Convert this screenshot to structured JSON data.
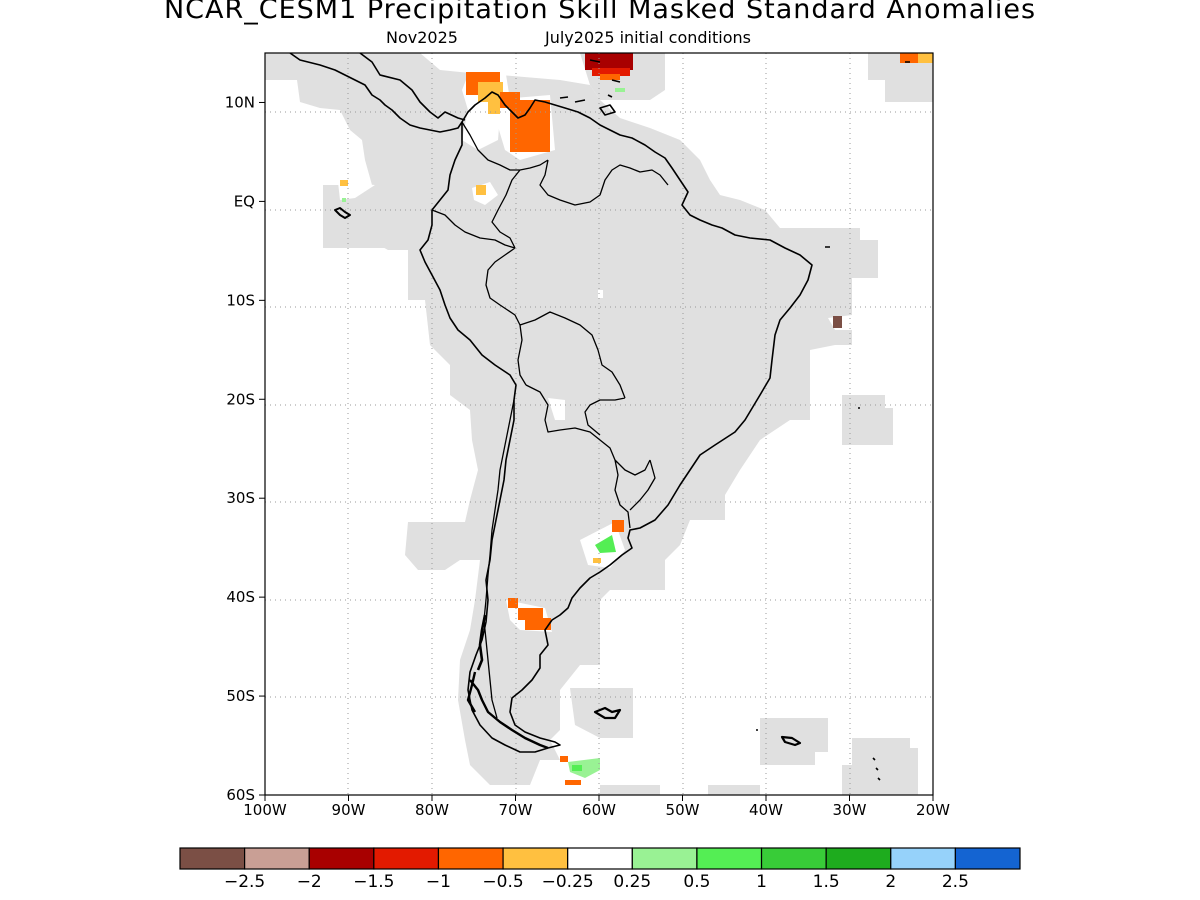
{
  "title": "NCAR_CESM1 Precipitation Skill Masked Standard Anomalies",
  "subtitle_left": "Nov2025",
  "subtitle_right": "July2025 initial conditions",
  "map": {
    "lon_range": [
      -100,
      -20
    ],
    "lat_range": [
      -60,
      15
    ],
    "grid": "dotted",
    "x_ticks": [
      "100W",
      "90W",
      "80W",
      "70W",
      "60W",
      "50W",
      "40W",
      "30W",
      "20W"
    ],
    "y_ticks": [
      "10N",
      "EQ",
      "10S",
      "20S",
      "30S",
      "40S",
      "50S",
      "60S"
    ],
    "mask_color": "#e0e0e0",
    "coastline_color": "#000000"
  },
  "colorbar": {
    "colors": [
      "#7b4f45",
      "#c99f95",
      "#a80000",
      "#e31a00",
      "#ff6600",
      "#ffc040",
      "#ffffff",
      "#99f294",
      "#54ee54",
      "#38cc38",
      "#1eac1e",
      "#96d2fa",
      "#1464d2"
    ],
    "labels": [
      "−2.5",
      "−2",
      "−1.5",
      "−1",
      "−0.5",
      "−0.25",
      "0.25",
      "0.5",
      "1",
      "1.5",
      "2",
      "2.5"
    ]
  },
  "anomaly_patches": [
    {
      "name": "caribbean-north",
      "value": -1.5
    },
    {
      "name": "colombia-north",
      "value": -1.0
    },
    {
      "name": "venezuela-west",
      "value": -1.0
    },
    {
      "name": "colombia-central",
      "value": -0.5
    },
    {
      "name": "galapagos",
      "value": -0.5
    },
    {
      "name": "uruguay",
      "value": 0.5
    },
    {
      "name": "patagonia-north",
      "value": -1.0
    },
    {
      "name": "brazil-east-atlantic",
      "value": -2.5
    },
    {
      "name": "drake-passage",
      "value": 0.5
    },
    {
      "name": "atlantic-northeast",
      "value": -1.0
    }
  ]
}
